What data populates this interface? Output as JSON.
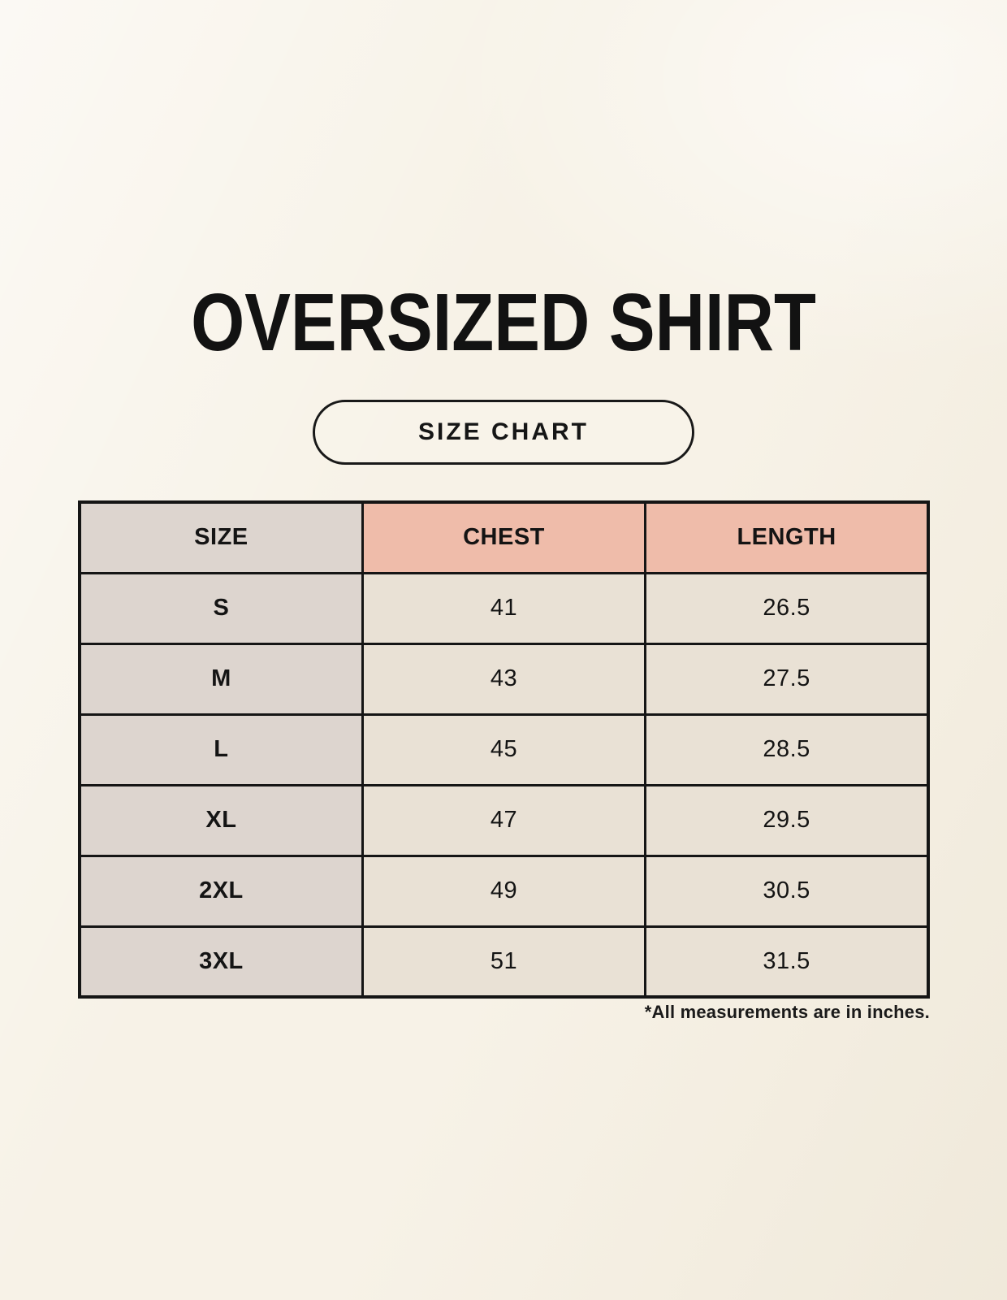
{
  "page": {
    "title": "OVERSIZED SHIRT",
    "badge_label": "SIZE CHART",
    "footnote": "*All measurements are in inches."
  },
  "chart_data": {
    "type": "table",
    "title": "OVERSIZED SHIRT — SIZE CHART",
    "units": "inches",
    "columns": [
      "SIZE",
      "CHEST",
      "LENGTH"
    ],
    "rows": [
      {
        "size": "S",
        "chest": "41",
        "length": "26.5"
      },
      {
        "size": "M",
        "chest": "43",
        "length": "27.5"
      },
      {
        "size": "L",
        "chest": "45",
        "length": "28.5"
      },
      {
        "size": "XL",
        "chest": "47",
        "length": "29.5"
      },
      {
        "size": "2XL",
        "chest": "49",
        "length": "30.5"
      },
      {
        "size": "3XL",
        "chest": "51",
        "length": "31.5"
      }
    ]
  },
  "colors": {
    "page_background": "#f7f2e7",
    "size_column_bg": "#ddd5cf",
    "header_accent_bg": "#efbcaa",
    "value_cell_bg": "#e9e1d5",
    "border": "#151515",
    "text": "#141414"
  }
}
